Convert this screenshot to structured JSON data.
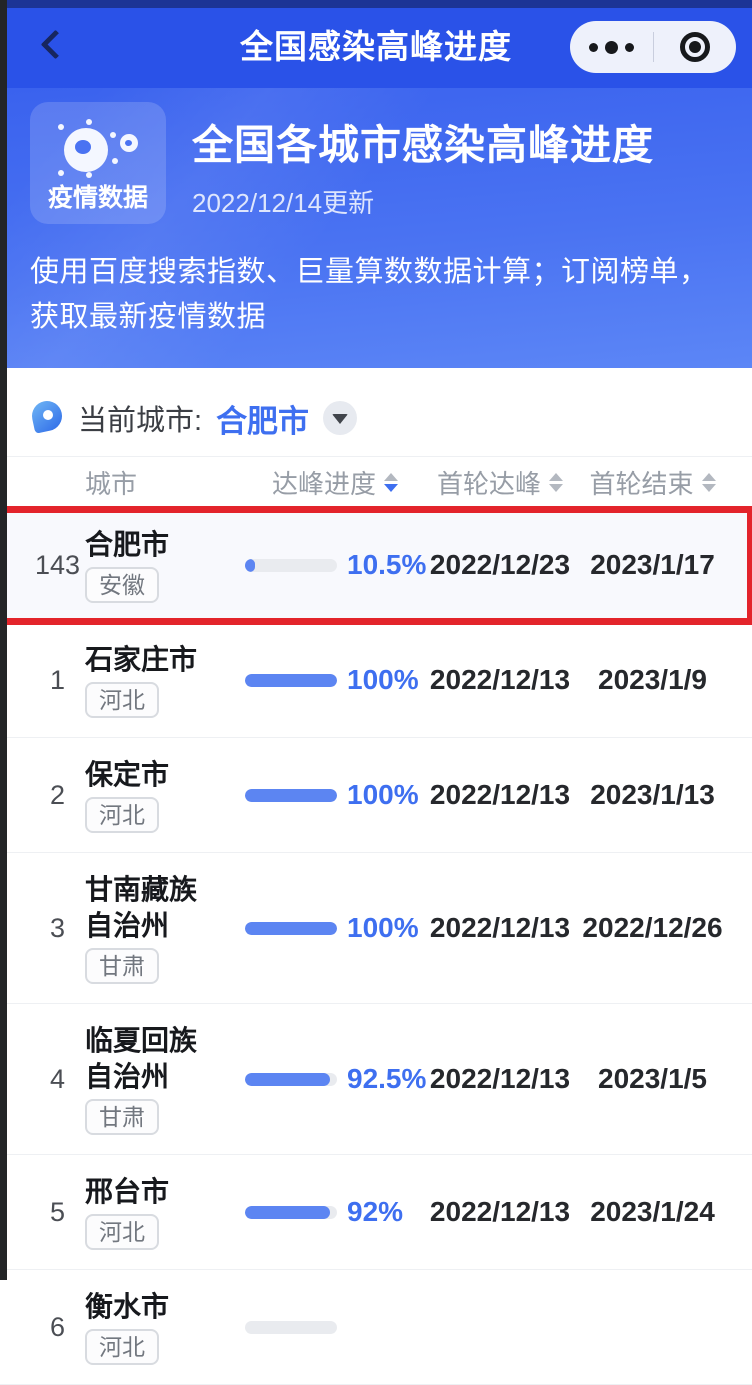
{
  "nav": {
    "title": "全国感染高峰进度"
  },
  "hero": {
    "badge_label": "疫情数据",
    "title": "全国各城市感染高峰进度",
    "updated": "2022/12/14更新",
    "description": "使用百度搜索指数、巨量算数数据计算；订阅榜单，获取最新疫情数据"
  },
  "city_selector": {
    "label": "当前城市:",
    "value": "合肥市"
  },
  "table": {
    "columns": [
      {
        "label": "城市",
        "sortable": false
      },
      {
        "label": "达峰进度",
        "sortable": true,
        "active": "desc"
      },
      {
        "label": "首轮达峰",
        "sortable": true
      },
      {
        "label": "首轮结束",
        "sortable": true
      }
    ],
    "rows": [
      {
        "rank": "143",
        "city": "合肥市",
        "province": "安徽",
        "progress": 10.5,
        "progress_label": "10.5%",
        "peak_date": "2022/12/23",
        "end_date": "2023/1/17",
        "highlighted": true
      },
      {
        "rank": "1",
        "city": "石家庄市",
        "province": "河北",
        "progress": 100,
        "progress_label": "100%",
        "peak_date": "2022/12/13",
        "end_date": "2023/1/9",
        "highlighted": false
      },
      {
        "rank": "2",
        "city": "保定市",
        "province": "河北",
        "progress": 100,
        "progress_label": "100%",
        "peak_date": "2022/12/13",
        "end_date": "2023/1/13",
        "highlighted": false
      },
      {
        "rank": "3",
        "city": "甘南藏族自治州",
        "province": "甘肃",
        "progress": 100,
        "progress_label": "100%",
        "peak_date": "2022/12/13",
        "end_date": "2022/12/26",
        "highlighted": false
      },
      {
        "rank": "4",
        "city": "临夏回族自治州",
        "province": "甘肃",
        "progress": 92.5,
        "progress_label": "92.5%",
        "peak_date": "2022/12/13",
        "end_date": "2023/1/5",
        "highlighted": false
      },
      {
        "rank": "5",
        "city": "邢台市",
        "province": "河北",
        "progress": 92,
        "progress_label": "92%",
        "peak_date": "2022/12/13",
        "end_date": "2023/1/24",
        "highlighted": false
      },
      {
        "rank": "6",
        "city": "衡水市",
        "province": "河北",
        "progress": 0,
        "progress_label": "",
        "peak_date": "",
        "end_date": "",
        "highlighted": false,
        "partial": true
      }
    ]
  },
  "colors": {
    "navbar_blue": "#2a52e8",
    "hero_blue_top": "#3a62ee",
    "hero_blue_bottom": "#5c86f6",
    "accent_blue": "#3e6ff0",
    "bar_fill": "#5c85f2",
    "bar_track": "#e9ebef",
    "annotation_red": "#e3242b",
    "header_gray": "#979da6"
  }
}
